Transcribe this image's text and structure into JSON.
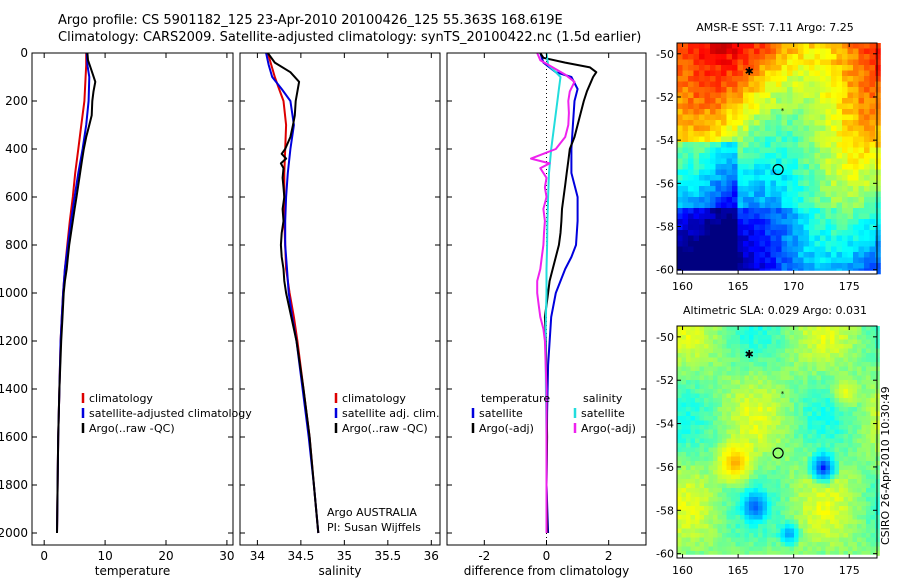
{
  "header": {
    "line1": "Argo profile: CS 5901182_125 23-Apr-2010 20100426_125 55.363S 168.619E",
    "line2": "Climatology: CARS2009. Satellite-adjusted climatology: synTS_20100422.nc (1.5d earlier)"
  },
  "footer_text": "CSIRO 26-Apr-2010 10:30:49",
  "colors": {
    "climatology": "#dd0000",
    "satellite": "#0000dd",
    "argo": "#000000",
    "satellite_sal": "#22dddd",
    "argo_sal": "#ee22ee"
  },
  "chart_data": [
    {
      "id": "temperature",
      "type": "line",
      "xlabel": "temperature",
      "xlim": [
        -2,
        31
      ],
      "ylim": [
        2050,
        0
      ],
      "xticks": [
        "0",
        "10",
        "20",
        "30"
      ],
      "yticks": [
        "0",
        "200",
        "400",
        "600",
        "800",
        "1000",
        "1200",
        "1400",
        "1600",
        "1800",
        "2000"
      ],
      "legend": [
        "climatology",
        "satellite-adjusted climatology",
        "Argo(..raw -QC)"
      ],
      "series": [
        {
          "name": "climatology",
          "color": "climatology",
          "pressure": [
            0,
            50,
            100,
            200,
            300,
            400,
            500,
            600,
            700,
            800,
            900,
            1000,
            1100,
            1200,
            1400,
            1600,
            1800,
            2000
          ],
          "values": [
            6.9,
            6.9,
            6.8,
            6.6,
            6.1,
            5.6,
            5.1,
            4.7,
            4.2,
            3.8,
            3.4,
            3.1,
            2.9,
            2.7,
            2.5,
            2.3,
            2.2,
            2.1
          ]
        },
        {
          "name": "satellite-adjusted climatology",
          "color": "satellite",
          "pressure": [
            0,
            50,
            100,
            200,
            300,
            400,
            500,
            600,
            700,
            800,
            900,
            1000,
            1100,
            1200,
            1400,
            1600,
            1800,
            2000
          ],
          "values": [
            7.0,
            7.1,
            7.4,
            7.3,
            6.9,
            6.3,
            5.6,
            5.0,
            4.4,
            3.9,
            3.4,
            3.1,
            2.9,
            2.7,
            2.5,
            2.3,
            2.2,
            2.1
          ]
        },
        {
          "name": "Argo(..raw -QC)",
          "color": "argo",
          "pressure": [
            0,
            30,
            60,
            90,
            120,
            160,
            200,
            260,
            300,
            350,
            400,
            450,
            500,
            550,
            600,
            650,
            700,
            750,
            800,
            850,
            900,
            950,
            1000,
            1050,
            1100,
            1200,
            1400,
            1600,
            1800,
            2000
          ],
          "values": [
            7.1,
            7.2,
            7.6,
            8.0,
            8.4,
            8.1,
            7.9,
            7.8,
            7.4,
            6.9,
            6.5,
            6.2,
            5.9,
            5.6,
            5.3,
            5.0,
            4.7,
            4.4,
            4.1,
            3.9,
            3.7,
            3.4,
            3.2,
            3.1,
            3.0,
            2.8,
            2.5,
            2.3,
            2.2,
            2.1
          ]
        }
      ]
    },
    {
      "id": "salinity",
      "type": "line",
      "xlabel": "salinity",
      "xlim": [
        33.8,
        36.1
      ],
      "ylim": [
        2050,
        0
      ],
      "xticks": [
        "34",
        "34.5",
        "35",
        "35.5",
        "36"
      ],
      "yticks": [],
      "legend": [
        "climatology",
        "satellite adj. clim.",
        "Argo(..raw -QC)"
      ],
      "annotation": [
        "Argo AUSTRALIA",
        "PI: Susan Wijffels"
      ],
      "series": [
        {
          "name": "climatology",
          "color": "climatology",
          "pressure": [
            0,
            50,
            100,
            150,
            200,
            300,
            400,
            500,
            600,
            700,
            800,
            900,
            1000,
            1100,
            1200,
            1400,
            1600,
            1800,
            2000
          ],
          "values": [
            34.12,
            34.16,
            34.2,
            34.25,
            34.3,
            34.33,
            34.32,
            34.31,
            34.31,
            34.31,
            34.32,
            34.33,
            34.37,
            34.42,
            34.46,
            34.53,
            34.6,
            34.65,
            34.7
          ]
        },
        {
          "name": "satellite adj. clim.",
          "color": "satellite",
          "pressure": [
            0,
            50,
            100,
            150,
            200,
            300,
            400,
            500,
            600,
            700,
            800,
            900,
            1000,
            1100,
            1200,
            1400,
            1600,
            1800,
            2000
          ],
          "values": [
            34.1,
            34.13,
            34.17,
            34.28,
            34.38,
            34.42,
            34.38,
            34.35,
            34.33,
            34.32,
            34.32,
            34.34,
            34.36,
            34.4,
            34.45,
            34.52,
            34.59,
            34.65,
            34.7
          ]
        },
        {
          "name": "Argo(..raw -QC)",
          "color": "argo",
          "pressure": [
            0,
            40,
            80,
            120,
            160,
            200,
            260,
            300,
            350,
            400,
            420,
            440,
            460,
            480,
            520,
            560,
            600,
            650,
            700,
            750,
            800,
            850,
            900,
            950,
            1000,
            1100,
            1200,
            1400,
            1600,
            1800,
            2000
          ],
          "values": [
            34.12,
            34.2,
            34.38,
            34.48,
            34.46,
            34.44,
            34.43,
            34.41,
            34.38,
            34.32,
            34.28,
            34.33,
            34.27,
            34.3,
            34.29,
            34.3,
            34.31,
            34.29,
            34.3,
            34.28,
            34.27,
            34.28,
            34.3,
            34.31,
            34.33,
            34.39,
            34.45,
            34.53,
            34.6,
            34.65,
            34.7
          ]
        }
      ]
    },
    {
      "id": "difference",
      "type": "line",
      "xlabel": "difference from climatology",
      "xlim": [
        -3.2,
        3.2
      ],
      "ylim": [
        2050,
        0
      ],
      "xticks": [
        "-2",
        "0",
        "2"
      ],
      "yticks": [],
      "legend_left": {
        "title": "temperature",
        "items": [
          "satellite",
          "Argo(-adj)"
        ]
      },
      "legend_right": {
        "title": "salinity",
        "items": [
          "satellite",
          "Argo(-adj)"
        ]
      },
      "series": [
        {
          "name": "temperature satellite",
          "color": "satellite",
          "pressure": [
            0,
            40,
            80,
            100,
            150,
            200,
            300,
            400,
            500,
            550,
            600,
            700,
            800,
            850,
            900,
            1000,
            1100,
            1300,
            1500,
            1800,
            2000
          ],
          "values": [
            -0.2,
            -0.1,
            0.3,
            0.8,
            1.0,
            0.9,
            0.85,
            0.8,
            0.8,
            0.9,
            1.0,
            1.0,
            0.95,
            0.8,
            0.6,
            0.3,
            0.15,
            0.05,
            0.02,
            0.0,
            0.05
          ]
        },
        {
          "name": "temperature Argo(-adj)",
          "color": "argo",
          "pressure": [
            0,
            20,
            40,
            60,
            80,
            100,
            130,
            160,
            200,
            250,
            300,
            350,
            400,
            450,
            500,
            550,
            600,
            650,
            700,
            750,
            800,
            850,
            900,
            950,
            1000,
            1050,
            1100,
            1200,
            1400,
            1600,
            1800,
            2000
          ],
          "values": [
            -0.2,
            -0.1,
            0.6,
            1.4,
            1.6,
            1.5,
            1.4,
            1.3,
            1.2,
            1.1,
            1.0,
            0.9,
            0.75,
            0.7,
            0.65,
            0.6,
            0.55,
            0.5,
            0.48,
            0.45,
            0.4,
            0.3,
            0.2,
            0.1,
            0.05,
            0.0,
            -0.05,
            -0.02,
            0.0,
            0.02,
            0.0,
            0.03
          ]
        },
        {
          "name": "salinity satellite",
          "color": "satellite_sal",
          "pressure": [
            0,
            50,
            80,
            100,
            150,
            200,
            300,
            400,
            500,
            600,
            700,
            800,
            900,
            1000,
            1100,
            1200,
            1400,
            1600,
            1800,
            2000
          ],
          "values": [
            0.0,
            0.05,
            0.3,
            0.45,
            0.4,
            0.35,
            0.25,
            0.15,
            0.08,
            0.05,
            0.03,
            0.02,
            0.0,
            0.0,
            -0.02,
            -0.03,
            -0.02,
            0.0,
            0.0,
            0.0
          ]
        },
        {
          "name": "salinity Argo(-adj)",
          "color": "argo_sal",
          "pressure": [
            0,
            30,
            60,
            90,
            120,
            160,
            200,
            250,
            300,
            350,
            400,
            420,
            440,
            460,
            480,
            520,
            560,
            600,
            650,
            700,
            750,
            800,
            850,
            900,
            950,
            1000,
            1050,
            1100,
            1150,
            1200,
            1400,
            1600,
            1800,
            2000
          ],
          "values": [
            -0.3,
            -0.2,
            0.2,
            0.6,
            0.9,
            0.75,
            0.7,
            0.72,
            0.7,
            0.6,
            0.3,
            -0.1,
            -0.5,
            0.1,
            -0.2,
            0.0,
            -0.05,
            0.0,
            -0.1,
            -0.05,
            -0.08,
            -0.1,
            -0.15,
            -0.2,
            -0.3,
            -0.3,
            -0.25,
            -0.2,
            -0.1,
            -0.05,
            0.0,
            0.0,
            0.0,
            0.0
          ]
        }
      ]
    },
    {
      "id": "sst_map",
      "type": "heatmap",
      "title": "AMSR-E SST: 7.11 Argo: 7.25",
      "xlim": [
        159.5,
        177.5
      ],
      "ylim": [
        -60.2,
        -49.5
      ],
      "xticks": [
        160,
        165,
        170,
        175
      ],
      "yticks": [
        -50,
        -52,
        -54,
        -56,
        -58,
        -60
      ],
      "argo_position": [
        168.6,
        -55.36
      ],
      "track_position": [
        166.0,
        -50.8
      ]
    },
    {
      "id": "sla_map",
      "type": "heatmap",
      "title": "Altimetric SLA: 0.029 Argo: 0.031",
      "xlim": [
        159.5,
        177.5
      ],
      "ylim": [
        -60.2,
        -49.5
      ],
      "xticks": [
        160,
        165,
        170,
        175
      ],
      "yticks": [
        -50,
        -52,
        -54,
        -56,
        -58,
        -60
      ],
      "argo_position": [
        168.6,
        -55.36
      ],
      "track_position": [
        166.0,
        -50.8
      ]
    }
  ]
}
